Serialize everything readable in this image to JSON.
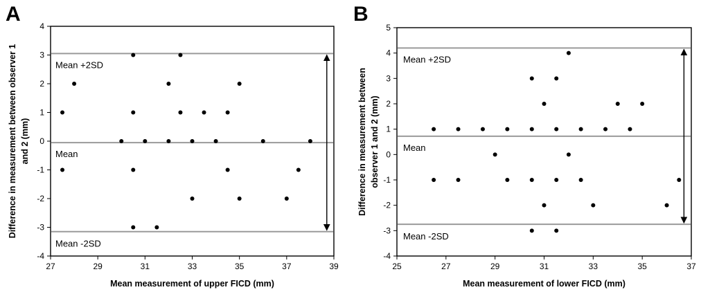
{
  "chart_data": [
    {
      "type": "scatter",
      "panel_label": "A",
      "xlabel": "Mean measurement of upper FICD (mm)",
      "ylabel_lines": [
        "Difference in measurement between observer 1",
        "and 2 (mm)"
      ],
      "xlim": [
        27,
        39
      ],
      "ylim": [
        -4,
        4
      ],
      "xticks": [
        27,
        29,
        31,
        33,
        35,
        37,
        39
      ],
      "yticks": [
        -4,
        -3,
        -2,
        -1,
        0,
        1,
        2,
        3,
        4
      ],
      "grid": false,
      "points": [
        {
          "x": 27.5,
          "y": 1
        },
        {
          "x": 28,
          "y": 2
        },
        {
          "x": 30.5,
          "y": 3
        },
        {
          "x": 32.5,
          "y": 3
        },
        {
          "x": 32,
          "y": 2
        },
        {
          "x": 35,
          "y": 2
        },
        {
          "x": 30.5,
          "y": 1
        },
        {
          "x": 32.5,
          "y": 1
        },
        {
          "x": 33.5,
          "y": 1
        },
        {
          "x": 34.5,
          "y": 1
        },
        {
          "x": 30,
          "y": 0
        },
        {
          "x": 31,
          "y": 0
        },
        {
          "x": 32,
          "y": 0
        },
        {
          "x": 33,
          "y": 0
        },
        {
          "x": 34,
          "y": 0
        },
        {
          "x": 36,
          "y": 0
        },
        {
          "x": 38,
          "y": 0
        },
        {
          "x": 27.5,
          "y": -1
        },
        {
          "x": 30.5,
          "y": -1
        },
        {
          "x": 34.5,
          "y": -1
        },
        {
          "x": 37.5,
          "y": -1
        },
        {
          "x": 33,
          "y": -2
        },
        {
          "x": 35,
          "y": -2
        },
        {
          "x": 37,
          "y": -2
        },
        {
          "x": 30.5,
          "y": -3
        },
        {
          "x": 31.5,
          "y": -3
        }
      ],
      "reference_lines": [
        {
          "label": "Mean +2SD",
          "y": 3.05
        },
        {
          "label": "Mean",
          "y": -0.05
        },
        {
          "label": "Mean -2SD",
          "y": -3.15
        }
      ],
      "arrow": {
        "x": 38.7,
        "from": 3.05,
        "to": -3.15
      }
    },
    {
      "type": "scatter",
      "panel_label": "B",
      "xlabel": "Mean measurement of lower FICD (mm)",
      "ylabel_lines": [
        "Difference in measurement between",
        "observer 1 and 2 (mm)"
      ],
      "xlim": [
        25,
        37
      ],
      "ylim": [
        -4,
        5
      ],
      "xticks": [
        25,
        27,
        29,
        31,
        33,
        35,
        37
      ],
      "xtick_labels": [
        "25",
        "27",
        "29",
        "31",
        "33",
        "35",
        "37"
      ],
      "yticks": [
        -4,
        -3,
        -2,
        -1,
        0,
        1,
        2,
        3,
        4,
        5
      ],
      "grid": false,
      "points": [
        {
          "x": 32,
          "y": 4
        },
        {
          "x": 30.5,
          "y": 3
        },
        {
          "x": 31.5,
          "y": 3
        },
        {
          "x": 31,
          "y": 2
        },
        {
          "x": 34,
          "y": 2
        },
        {
          "x": 35,
          "y": 2
        },
        {
          "x": 26.5,
          "y": 1
        },
        {
          "x": 27.5,
          "y": 1
        },
        {
          "x": 28.5,
          "y": 1
        },
        {
          "x": 29.5,
          "y": 1
        },
        {
          "x": 30.5,
          "y": 1
        },
        {
          "x": 31.5,
          "y": 1
        },
        {
          "x": 32.5,
          "y": 1
        },
        {
          "x": 33.5,
          "y": 1
        },
        {
          "x": 34.5,
          "y": 1
        },
        {
          "x": 29,
          "y": 0
        },
        {
          "x": 32,
          "y": 0
        },
        {
          "x": 26.5,
          "y": -1
        },
        {
          "x": 27.5,
          "y": -1
        },
        {
          "x": 29.5,
          "y": -1
        },
        {
          "x": 30.5,
          "y": -1
        },
        {
          "x": 31.5,
          "y": -1
        },
        {
          "x": 32.5,
          "y": -1
        },
        {
          "x": 36.5,
          "y": -1
        },
        {
          "x": 31,
          "y": -2
        },
        {
          "x": 33,
          "y": -2
        },
        {
          "x": 36,
          "y": -2
        },
        {
          "x": 30.5,
          "y": -3
        },
        {
          "x": 31.5,
          "y": -3
        }
      ],
      "reference_lines": [
        {
          "label": "Mean +2SD",
          "y": 4.2
        },
        {
          "label": "Mean",
          "y": 0.72
        },
        {
          "label": "Mean -2SD",
          "y": -2.75
        }
      ],
      "arrow": {
        "x": 36.7,
        "from": 4.2,
        "to": -2.75
      }
    }
  ]
}
